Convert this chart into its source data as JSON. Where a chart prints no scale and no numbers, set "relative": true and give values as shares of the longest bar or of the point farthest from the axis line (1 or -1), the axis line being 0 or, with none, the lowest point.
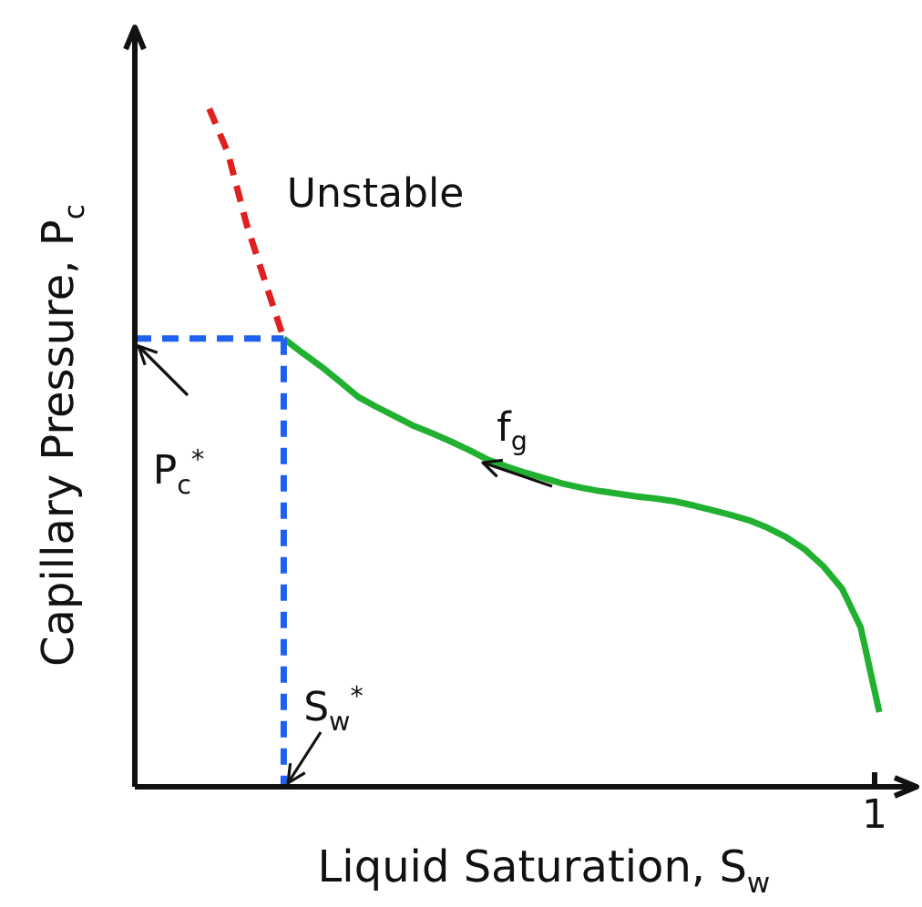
{
  "chart_data": {
    "type": "line",
    "relative": true,
    "xlabel": "Liquid Saturation, S$_{w}$",
    "ylabel": "Capillary Pressure, P$_{c}$",
    "legend": false,
    "grid": false,
    "marker": "none",
    "categories": [
      null,
      null,
      null,
      null,
      null,
      null,
      null,
      null,
      null,
      null,
      null,
      null,
      null,
      null,
      null,
      null,
      null,
      null,
      null,
      null,
      null,
      null,
      null,
      null,
      null,
      null,
      null,
      null,
      null,
      null,
      null,
      null,
      null,
      null,
      null,
      null,
      null,
      null,
      null,
      null,
      null,
      null,
      null
    ],
    "series": [
      {
        "color": "#e02020",
        "line_style": "dashed",
        "values": [
          null,
          null,
          null,
          null,
          1.0,
          0.935,
          0.83,
          0.745,
          0.661,
          null,
          null,
          null,
          null,
          null,
          null,
          null,
          null,
          null,
          null,
          null,
          null,
          null,
          null,
          null,
          null,
          null,
          null,
          null,
          null,
          null,
          null,
          null,
          null,
          null,
          null,
          null,
          null,
          null,
          null,
          null,
          null,
          null,
          null
        ]
      },
      {
        "color": "#22b030",
        "line_style": "solid",
        "values": [
          null,
          null,
          null,
          null,
          null,
          null,
          null,
          null,
          0.661,
          0.64,
          0.62,
          0.598,
          0.575,
          0.56,
          0.546,
          0.532,
          0.521,
          0.509,
          0.496,
          0.482,
          0.472,
          0.463,
          0.455,
          0.447,
          0.441,
          0.436,
          0.432,
          0.428,
          0.425,
          0.421,
          0.415,
          0.408,
          0.401,
          0.393,
          0.382,
          0.368,
          0.35,
          0.325,
          0.292,
          0.235,
          0.11,
          null,
          null
        ]
      },
      {
        "color": "#2060ee",
        "line_style": "dashed",
        "values": [
          0.661,
          0.661,
          0.661,
          0.661,
          0.661,
          0.661,
          0.661,
          0.661,
          0.661,
          null,
          null,
          null,
          null,
          null,
          null,
          null,
          null,
          null,
          null,
          null,
          null,
          null,
          null,
          null,
          null,
          null,
          null,
          null,
          null,
          null,
          null,
          null,
          null,
          null,
          null,
          null,
          null,
          null,
          null,
          null,
          null,
          null,
          null
        ]
      }
    ],
    "annotations": [
      "Unstable",
      "P$_{c}$$^{*}$",
      "S$_{w}$$^{*}$",
      "f$_{g}$",
      "1"
    ]
  }
}
